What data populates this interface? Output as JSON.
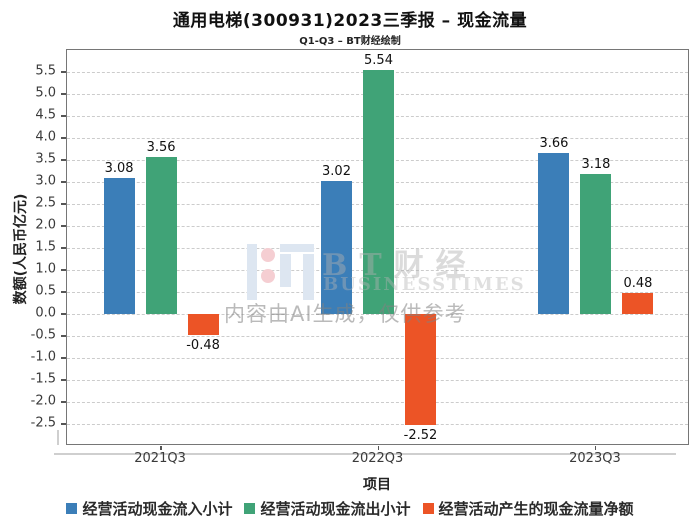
{
  "chart_data": {
    "type": "bar",
    "title": "通用电梯(300931)2023三季报 – 现金流量",
    "subtitle": "Q1-Q3 – BT财经绘制",
    "xlabel": "项目",
    "ylabel": "数额(人民币亿元)",
    "categories": [
      "2021Q3",
      "2022Q3",
      "2023Q3"
    ],
    "series": [
      {
        "name": "经营活动现金流入小计",
        "color": "#3b7eb8",
        "values": [
          3.08,
          3.02,
          3.66
        ]
      },
      {
        "name": "经营活动现金流出小计",
        "color": "#40a377",
        "values": [
          3.56,
          5.54,
          3.18
        ]
      },
      {
        "name": "经营活动产生的现金流量净额",
        "color": "#ec5426",
        "values": [
          -0.48,
          -2.52,
          0.48
        ]
      }
    ],
    "ylim": [
      -3.0,
      6.0
    ],
    "ytick_step": 0.5,
    "value_label_decimals": 2,
    "grid": "horizontal-dashed",
    "legend_position": "bottom"
  },
  "watermark": {
    "logo": "bt-logo",
    "brand_cn": "BT财经",
    "brand_en": "BUSINESSTIMES",
    "disclaimer": "内容由AI生成，仅供参考"
  },
  "colors": {
    "inflow_blue": "#3b7eb8",
    "outflow_green": "#40a377",
    "net_orange": "#ec5426",
    "grid": "#cccccc",
    "spine": "#767676"
  }
}
